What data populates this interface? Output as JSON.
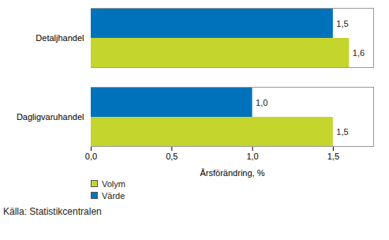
{
  "chart_data": {
    "type": "bar",
    "orientation": "horizontal",
    "categories": [
      "Detaljhandel",
      "Dagligvaruhandel"
    ],
    "series": [
      {
        "name": "Volym",
        "color": "#c4d62e",
        "values": [
          1.6,
          1.5
        ],
        "value_labels": [
          "1,6",
          "1,5"
        ]
      },
      {
        "name": "Värde",
        "color": "#0072bc",
        "values": [
          1.5,
          1.0
        ],
        "value_labels": [
          "1,5",
          "1,0"
        ]
      }
    ],
    "xlabel": "Årsförändring, %",
    "xlim": [
      0,
      1.75
    ],
    "xticks": [
      {
        "value": 0,
        "label": "0,0"
      },
      {
        "value": 0.5,
        "label": "0,5"
      },
      {
        "value": 1,
        "label": "1,0"
      },
      {
        "value": 1.5,
        "label": "1,5"
      }
    ],
    "data_labels": true,
    "grid": false,
    "legend": "bottom",
    "caption": "Källa: Statistikcentralen"
  }
}
